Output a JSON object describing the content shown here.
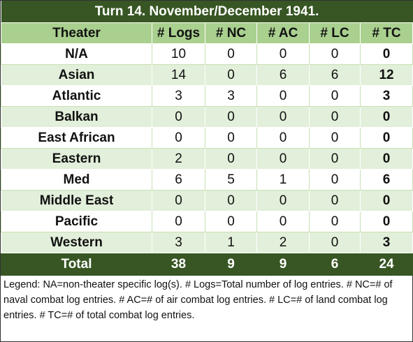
{
  "table": {
    "title": "Turn 14. November/December 1941.",
    "header": [
      "Theater",
      "# Logs",
      "# NC",
      "# AC",
      "# LC",
      "# TC"
    ],
    "rows": [
      [
        "N/A",
        10,
        0,
        0,
        0,
        0
      ],
      [
        "Asian",
        14,
        0,
        6,
        6,
        12
      ],
      [
        "Atlantic",
        3,
        3,
        0,
        0,
        3
      ],
      [
        "Balkan",
        0,
        0,
        0,
        0,
        0
      ],
      [
        "East African",
        0,
        0,
        0,
        0,
        0
      ],
      [
        "Eastern",
        2,
        0,
        0,
        0,
        0
      ],
      [
        "Med",
        6,
        5,
        1,
        0,
        6
      ],
      [
        "Middle East",
        0,
        0,
        0,
        0,
        0
      ],
      [
        "Pacific",
        0,
        0,
        0,
        0,
        0
      ],
      [
        "Western",
        3,
        1,
        2,
        0,
        3
      ]
    ],
    "total": [
      "Total",
      38,
      9,
      9,
      6,
      24
    ],
    "legend": "Legend:  NA=non-theater specific log(s).  # Logs=Total number of log entries.  # NC=# of naval combat log entries.  # AC=# of air combat log entries.  # LC=# of land combat log entries.  # TC=# of total combat log entries."
  }
}
